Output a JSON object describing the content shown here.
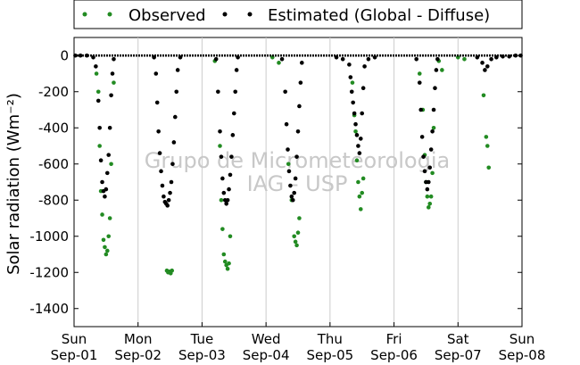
{
  "chart_data": {
    "type": "scatter",
    "ylabel": "Solar radiation (Wm⁻²)",
    "ylim": [
      -1500,
      100
    ],
    "yticks": [
      0,
      -200,
      -400,
      -600,
      -800,
      -1000,
      -1200,
      -1400
    ],
    "xlim": [
      0,
      7
    ],
    "xticks": [
      {
        "x": 0,
        "day": "Sun",
        "date": "Sep-01"
      },
      {
        "x": 1,
        "day": "Mon",
        "date": "Sep-02"
      },
      {
        "x": 2,
        "day": "Tue",
        "date": "Sep-03"
      },
      {
        "x": 3,
        "day": "Wed",
        "date": "Sep-04"
      },
      {
        "x": 4,
        "day": "Thu",
        "date": "Sep-05"
      },
      {
        "x": 5,
        "day": "Fri",
        "date": "Sep-06"
      },
      {
        "x": 6,
        "day": "Sat",
        "date": "Sep-07"
      },
      {
        "x": 7,
        "day": "Sun",
        "date": "Sep-08"
      }
    ],
    "grid": "vertical",
    "legend_position": "top",
    "watermark": [
      "Grupo de Micrometeorologia",
      "IAG - USP"
    ],
    "series": [
      {
        "name": "Observed",
        "color": "#228b22",
        "points": [
          [
            0.35,
            -100
          ],
          [
            0.38,
            -200
          ],
          [
            0.4,
            -500
          ],
          [
            0.42,
            -750
          ],
          [
            0.44,
            -880
          ],
          [
            0.46,
            -1020
          ],
          [
            0.48,
            -1060
          ],
          [
            0.5,
            -1100
          ],
          [
            0.52,
            -1080
          ],
          [
            0.54,
            -1000
          ],
          [
            0.56,
            -900
          ],
          [
            0.58,
            -600
          ],
          [
            0.62,
            -150
          ],
          [
            1.45,
            -1190
          ],
          [
            1.47,
            -1200
          ],
          [
            1.49,
            -1195
          ],
          [
            1.51,
            -1205
          ],
          [
            1.53,
            -1190
          ],
          [
            2.2,
            -30
          ],
          [
            2.28,
            -500
          ],
          [
            2.3,
            -800
          ],
          [
            2.32,
            -960
          ],
          [
            2.34,
            -1100
          ],
          [
            2.36,
            -1140
          ],
          [
            2.38,
            -1160
          ],
          [
            2.4,
            -1180
          ],
          [
            2.42,
            -1150
          ],
          [
            2.44,
            -1000
          ],
          [
            3.1,
            -10
          ],
          [
            3.2,
            -40
          ],
          [
            3.35,
            -600
          ],
          [
            3.4,
            -800
          ],
          [
            3.44,
            -1000
          ],
          [
            3.46,
            -1030
          ],
          [
            3.48,
            -1050
          ],
          [
            3.5,
            -980
          ],
          [
            3.52,
            -900
          ],
          [
            4.35,
            -150
          ],
          [
            4.38,
            -330
          ],
          [
            4.4,
            -420
          ],
          [
            4.42,
            -580
          ],
          [
            4.44,
            -700
          ],
          [
            4.46,
            -780
          ],
          [
            4.48,
            -850
          ],
          [
            4.5,
            -760
          ],
          [
            4.52,
            -680
          ],
          [
            5.4,
            -100
          ],
          [
            5.45,
            -300
          ],
          [
            5.48,
            -550
          ],
          [
            5.5,
            -700
          ],
          [
            5.52,
            -780
          ],
          [
            5.54,
            -840
          ],
          [
            5.56,
            -820
          ],
          [
            5.58,
            -780
          ],
          [
            5.6,
            -650
          ],
          [
            5.62,
            -400
          ],
          [
            5.7,
            -30
          ],
          [
            5.75,
            -80
          ],
          [
            6.0,
            -10
          ],
          [
            6.1,
            -20
          ],
          [
            6.4,
            -220
          ],
          [
            6.44,
            -450
          ],
          [
            6.46,
            -500
          ],
          [
            6.48,
            -620
          ]
        ]
      },
      {
        "name": "Estimated (Global - Diffuse)",
        "color": "#000000",
        "points": [
          [
            0.02,
            0
          ],
          [
            0.1,
            0
          ],
          [
            0.2,
            0
          ],
          [
            0.3,
            -10
          ],
          [
            0.34,
            -60
          ],
          [
            0.38,
            -250
          ],
          [
            0.4,
            -400
          ],
          [
            0.42,
            -580
          ],
          [
            0.44,
            -700
          ],
          [
            0.46,
            -750
          ],
          [
            0.48,
            -780
          ],
          [
            0.5,
            -740
          ],
          [
            0.52,
            -650
          ],
          [
            0.54,
            -550
          ],
          [
            0.56,
            -400
          ],
          [
            0.58,
            -220
          ],
          [
            0.6,
            -100
          ],
          [
            0.62,
            -20
          ],
          [
            1.25,
            -10
          ],
          [
            1.28,
            -100
          ],
          [
            1.3,
            -260
          ],
          [
            1.32,
            -420
          ],
          [
            1.34,
            -540
          ],
          [
            1.36,
            -640
          ],
          [
            1.38,
            -720
          ],
          [
            1.4,
            -780
          ],
          [
            1.42,
            -810
          ],
          [
            1.44,
            -820
          ],
          [
            1.46,
            -830
          ],
          [
            1.48,
            -800
          ],
          [
            1.5,
            -760
          ],
          [
            1.52,
            -700
          ],
          [
            1.54,
            -600
          ],
          [
            1.56,
            -480
          ],
          [
            1.58,
            -340
          ],
          [
            1.6,
            -200
          ],
          [
            1.62,
            -80
          ],
          [
            1.66,
            -10
          ],
          [
            2.22,
            -20
          ],
          [
            2.25,
            -200
          ],
          [
            2.28,
            -420
          ],
          [
            2.3,
            -560
          ],
          [
            2.32,
            -680
          ],
          [
            2.34,
            -760
          ],
          [
            2.36,
            -800
          ],
          [
            2.38,
            -820
          ],
          [
            2.4,
            -800
          ],
          [
            2.42,
            -740
          ],
          [
            2.44,
            -660
          ],
          [
            2.46,
            -560
          ],
          [
            2.48,
            -440
          ],
          [
            2.5,
            -320
          ],
          [
            2.52,
            -200
          ],
          [
            2.54,
            -80
          ],
          [
            2.56,
            -10
          ],
          [
            3.25,
            -20
          ],
          [
            3.3,
            -200
          ],
          [
            3.32,
            -380
          ],
          [
            3.34,
            -520
          ],
          [
            3.36,
            -640
          ],
          [
            3.38,
            -720
          ],
          [
            3.4,
            -780
          ],
          [
            3.42,
            -800
          ],
          [
            3.44,
            -760
          ],
          [
            3.46,
            -680
          ],
          [
            3.48,
            -560
          ],
          [
            3.5,
            -420
          ],
          [
            3.52,
            -280
          ],
          [
            3.54,
            -150
          ],
          [
            3.56,
            -40
          ],
          [
            4.1,
            -10
          ],
          [
            4.2,
            -20
          ],
          [
            4.3,
            -50
          ],
          [
            4.32,
            -120
          ],
          [
            4.34,
            -200
          ],
          [
            4.36,
            -260
          ],
          [
            4.38,
            -320
          ],
          [
            4.4,
            -380
          ],
          [
            4.42,
            -440
          ],
          [
            4.44,
            -500
          ],
          [
            4.46,
            -540
          ],
          [
            4.48,
            -460
          ],
          [
            4.5,
            -320
          ],
          [
            4.52,
            -180
          ],
          [
            4.54,
            -60
          ],
          [
            4.6,
            -20
          ],
          [
            4.7,
            -10
          ],
          [
            5.35,
            -20
          ],
          [
            5.4,
            -150
          ],
          [
            5.42,
            -300
          ],
          [
            5.44,
            -450
          ],
          [
            5.46,
            -560
          ],
          [
            5.48,
            -640
          ],
          [
            5.5,
            -700
          ],
          [
            5.52,
            -740
          ],
          [
            5.54,
            -700
          ],
          [
            5.56,
            -620
          ],
          [
            5.58,
            -520
          ],
          [
            5.6,
            -420
          ],
          [
            5.62,
            -300
          ],
          [
            5.64,
            -180
          ],
          [
            5.66,
            -80
          ],
          [
            5.68,
            -20
          ],
          [
            6.3,
            -10
          ],
          [
            6.38,
            -40
          ],
          [
            6.42,
            -80
          ],
          [
            6.46,
            -60
          ],
          [
            6.52,
            -20
          ],
          [
            6.6,
            -10
          ],
          [
            6.7,
            -5
          ],
          [
            6.8,
            -5
          ],
          [
            6.9,
            0
          ],
          [
            6.98,
            0
          ]
        ]
      }
    ]
  }
}
